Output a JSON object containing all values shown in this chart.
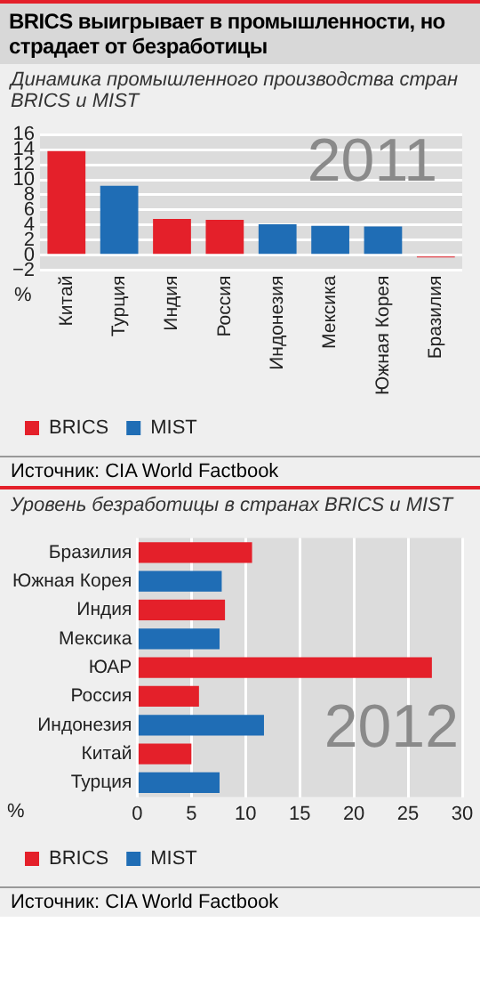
{
  "chart_data": [
    {
      "type": "bar",
      "title": "BRICS выигрывает в промышленности, но страдает от безработицы",
      "subtitle": "Динамика промышленного производства стран BRICS и MIST",
      "ylabel": "%",
      "categories": [
        "Китай",
        "Турция",
        "Индия",
        "Россия",
        "Индонезия",
        "Мексика",
        "Южная Корея",
        "Бразилия"
      ],
      "series": [
        {
          "name": "BRICS",
          "color": "#e4202a",
          "values": [
            13.8,
            null,
            4.8,
            4.7,
            null,
            null,
            null,
            -0.3
          ]
        },
        {
          "name": "MIST",
          "color": "#1f6db5",
          "values": [
            null,
            9.2,
            null,
            null,
            4.1,
            3.9,
            3.8,
            null
          ]
        }
      ],
      "stacked": true,
      "ylim": [
        -2,
        16
      ],
      "yticks": [
        -2,
        0,
        2,
        4,
        6,
        8,
        10,
        12,
        14,
        16
      ],
      "grid": "y",
      "legend": "bottom",
      "annotations": [
        "2011",
        "Источник: CIA World Factbook"
      ]
    },
    {
      "type": "bar",
      "orientation": "horizontal",
      "subtitle": "Уровень безработицы в странах BRICS и MIST",
      "xlabel": "%",
      "categories": [
        "Бразилия",
        "Южная Корея",
        "Индия",
        "Мексика",
        "ЮАР",
        "Россия",
        "Индонезия",
        "Китай",
        "Турция"
      ],
      "series": [
        {
          "name": "BRICS",
          "color": "#e4202a",
          "values": [
            10.6,
            null,
            8.1,
            null,
            27.2,
            5.7,
            null,
            5.0,
            null
          ]
        },
        {
          "name": "MIST",
          "color": "#1f6db5",
          "values": [
            null,
            7.8,
            null,
            7.6,
            null,
            null,
            11.7,
            null,
            7.6
          ]
        }
      ],
      "stacked": true,
      "xlim": [
        0,
        30
      ],
      "xticks": [
        0,
        5,
        10,
        15,
        20,
        25,
        30
      ],
      "grid": "x",
      "legend": "bottom",
      "annotations": [
        "2012",
        "Источник: CIA World Factbook"
      ]
    }
  ]
}
